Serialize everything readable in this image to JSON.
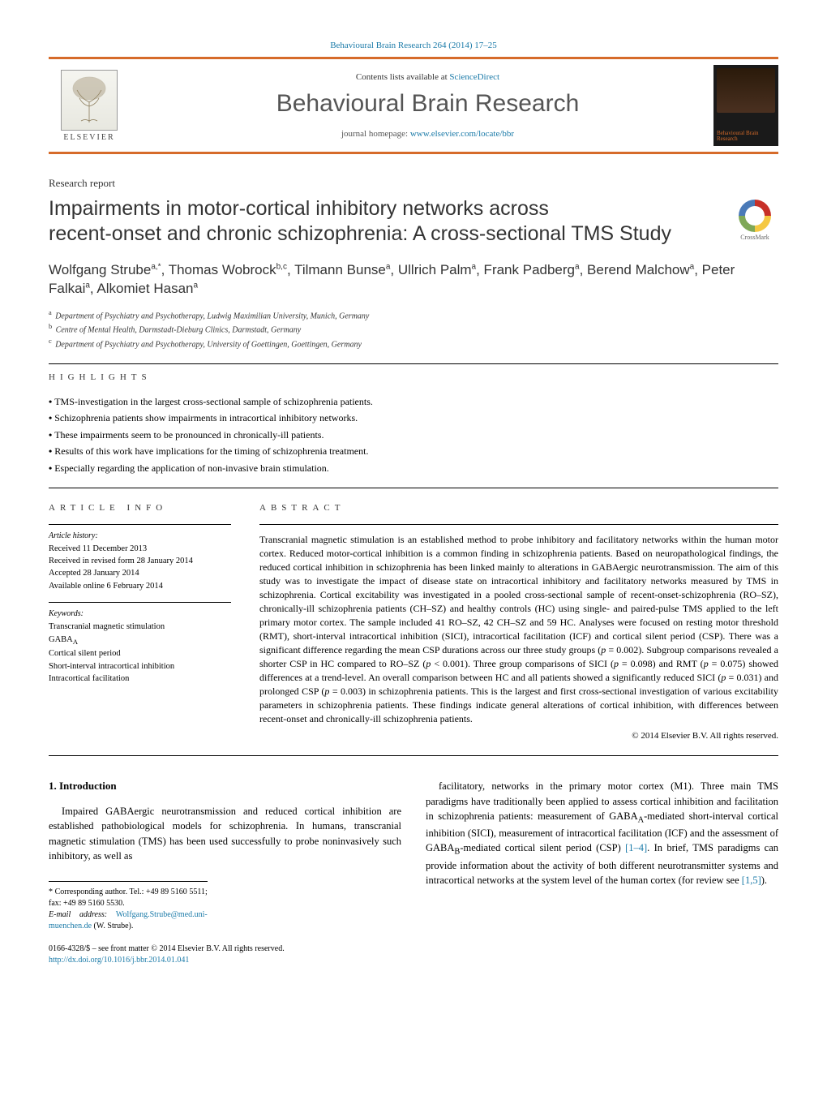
{
  "header": {
    "citation": "Behavioural Brain Research 264 (2014) 17–25",
    "contents_prefix": "Contents lists available at ",
    "contents_link": "ScienceDirect",
    "journal_title": "Behavioural Brain Research",
    "homepage_prefix": "journal homepage: ",
    "homepage_url": "www.elsevier.com/locate/bbr",
    "publisher": "ELSEVIER",
    "cover_label": "Behavioural Brain Research"
  },
  "article": {
    "type": "Research report",
    "title_line1": "Impairments in motor-cortical inhibitory networks across",
    "title_line2": "recent-onset and chronic schizophrenia: A cross-sectional TMS Study",
    "crossmark_label": "CrossMark"
  },
  "authors": {
    "list": "Wolfgang Strube",
    "a1_sup": "a,*",
    "a2": ", Thomas Wobrock",
    "a2_sup": "b,c",
    "a3": ", Tilmann Bunse",
    "a3_sup": "a",
    "a4": ", Ullrich Palm",
    "a4_sup": "a",
    "a5": ", Frank Padberg",
    "a5_sup": "a",
    "a6": ", Berend Malchow",
    "a6_sup": "a",
    "a7": ", Peter Falkai",
    "a7_sup": "a",
    "a8": ", Alkomiet Hasan",
    "a8_sup": "a"
  },
  "affiliations": [
    {
      "sup": "a",
      "text": "Department of Psychiatry and Psychotherapy, Ludwig Maximilian University, Munich, Germany"
    },
    {
      "sup": "b",
      "text": "Centre of Mental Health, Darmstadt-Dieburg Clinics, Darmstadt, Germany"
    },
    {
      "sup": "c",
      "text": "Department of Psychiatry and Psychotherapy, University of Goettingen, Goettingen, Germany"
    }
  ],
  "highlights": {
    "label": "HIGHLIGHTS",
    "items": [
      "TMS-investigation in the largest cross-sectional sample of schizophrenia patients.",
      "Schizophrenia patients show impairments in intracortical inhibitory networks.",
      "These impairments seem to be pronounced in chronically-ill patients.",
      "Results of this work have implications for the timing of schizophrenia treatment.",
      "Especially regarding the application of non-invasive brain stimulation."
    ]
  },
  "info": {
    "label": "ARTICLE INFO",
    "history_heading": "Article history:",
    "history": "Received 11 December 2013\nReceived in revised form 28 January 2014\nAccepted 28 January 2014\nAvailable online 6 February 2014",
    "keywords_heading": "Keywords:",
    "keywords": [
      "Transcranial magnetic stimulation",
      "GABA_A",
      "Cortical silent period",
      "Short-interval intracortical inhibition",
      "Intracortical facilitation"
    ]
  },
  "abstract": {
    "label": "ABSTRACT",
    "text": "Transcranial magnetic stimulation is an established method to probe inhibitory and facilitatory networks within the human motor cortex. Reduced motor-cortical inhibition is a common finding in schizophrenia patients. Based on neuropathological findings, the reduced cortical inhibition in schizophrenia has been linked mainly to alterations in GABAergic neurotransmission. The aim of this study was to investigate the impact of disease state on intracortical inhibitory and facilitatory networks measured by TMS in schizophrenia. Cortical excitability was investigated in a pooled cross-sectional sample of recent-onset-schizophrenia (RO–SZ), chronically-ill schizophrenia patients (CH–SZ) and healthy controls (HC) using single- and paired-pulse TMS applied to the left primary motor cortex. The sample included 41 RO–SZ, 42 CH–SZ and 59 HC. Analyses were focused on resting motor threshold (RMT), short-interval intracortical inhibition (SICI), intracortical facilitation (ICF) and cortical silent period (CSP). There was a significant difference regarding the mean CSP durations across our three study groups (p = 0.002). Subgroup comparisons revealed a shorter CSP in HC compared to RO–SZ (p < 0.001). Three group comparisons of SICI (p = 0.098) and RMT (p = 0.075) showed differences at a trend-level. An overall comparison between HC and all patients showed a significantly reduced SICI (p = 0.031) and prolonged CSP (p = 0.003) in schizophrenia patients. This is the largest and first cross-sectional investigation of various excitability parameters in schizophrenia patients. These findings indicate general alterations of cortical inhibition, with differences between recent-onset and chronically-ill schizophrenia patients.",
    "copyright": "© 2014 Elsevier B.V. All rights reserved."
  },
  "intro": {
    "heading": "1.  Introduction",
    "col1": "Impaired GABAergic neurotransmission and reduced cortical inhibition are established pathobiological models for schizophrenia. In humans, transcranial magnetic stimulation (TMS) has been used successfully to probe noninvasively such inhibitory, as well as",
    "col2_a": "facilitatory, networks in the primary motor cortex (M1). Three main TMS paradigms have traditionally been applied to assess cortical inhibition and facilitation in schizophrenia patients: measurement of GABA",
    "col2_a_sub": "A",
    "col2_b": "-mediated short-interval cortical inhibition (SICI), measurement of intracortical facilitation (ICF) and the assessment of GABA",
    "col2_b_sub": "B",
    "col2_c": "-mediated cortical silent period (CSP) ",
    "col2_ref1": "[1–4]",
    "col2_d": ". In brief, TMS paradigms can provide information about the activity of both different neurotransmitter systems and intracortical networks at the system level of the human cortex (for review see ",
    "col2_ref2": "[1,5]",
    "col2_e": ")."
  },
  "footnote": {
    "corr": "* Corresponding author. Tel.: +49 89 5160 5511; fax: +49 89 5160 5530.",
    "email_label": "E-mail address: ",
    "email": "Wolfgang.Strube@med.uni-muenchen.de",
    "email_suffix": " (W. Strube)."
  },
  "bottom": {
    "issn": "0166-4328/$ – see front matter © 2014 Elsevier B.V. All rights reserved.",
    "doi": "http://dx.doi.org/10.1016/j.bbr.2014.01.041"
  },
  "colors": {
    "accent": "#d66b2a",
    "link": "#1a7aa8"
  }
}
